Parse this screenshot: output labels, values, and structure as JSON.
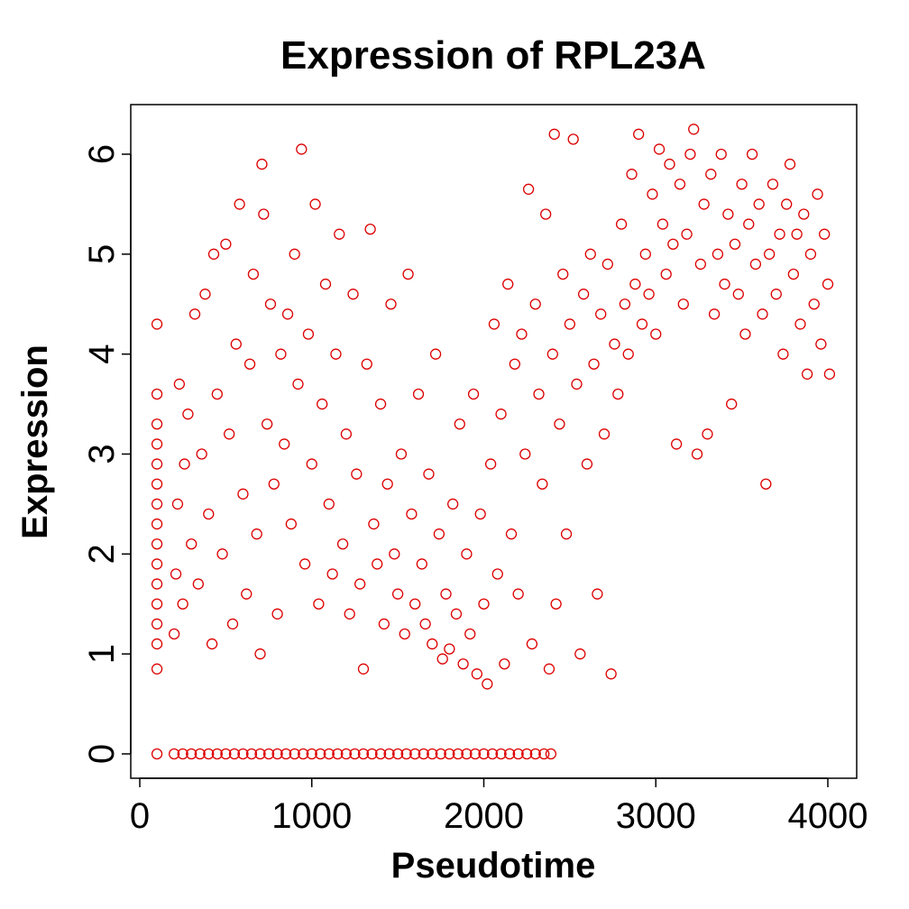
{
  "chart_data": {
    "type": "scatter",
    "title": "Expression of RPL23A",
    "xlabel": "Pseudotime",
    "ylabel": "Expression",
    "xlim": [
      0,
      4000
    ],
    "ylim": [
      0,
      6
    ],
    "x_ticks": [
      0,
      1000,
      2000,
      3000,
      4000
    ],
    "x_tick_labels": [
      "0",
      "1000",
      "2000",
      "3000",
      "4000"
    ],
    "y_ticks": [
      0,
      1,
      2,
      3,
      4,
      5,
      6
    ],
    "y_tick_labels": [
      "0",
      "1",
      "2",
      "3",
      "4",
      "5",
      "6"
    ],
    "grid": false,
    "marker": "open-circle",
    "point_color": "#dd0000",
    "series": [
      {
        "points": [
          [
            100,
            0
          ],
          [
            200,
            0
          ],
          [
            250,
            0
          ],
          [
            300,
            0
          ],
          [
            350,
            0
          ],
          [
            400,
            0
          ],
          [
            450,
            0
          ],
          [
            500,
            0
          ],
          [
            550,
            0
          ],
          [
            600,
            0
          ],
          [
            650,
            0
          ],
          [
            700,
            0
          ],
          [
            750,
            0
          ],
          [
            800,
            0
          ],
          [
            850,
            0
          ],
          [
            900,
            0
          ],
          [
            950,
            0
          ],
          [
            1000,
            0
          ],
          [
            1050,
            0
          ],
          [
            1100,
            0
          ],
          [
            1150,
            0
          ],
          [
            1200,
            0
          ],
          [
            1250,
            0
          ],
          [
            1300,
            0
          ],
          [
            1350,
            0
          ],
          [
            1400,
            0
          ],
          [
            1450,
            0
          ],
          [
            1500,
            0
          ],
          [
            1550,
            0
          ],
          [
            1600,
            0
          ],
          [
            1650,
            0
          ],
          [
            1700,
            0
          ],
          [
            1750,
            0
          ],
          [
            1800,
            0
          ],
          [
            1850,
            0
          ],
          [
            1900,
            0
          ],
          [
            1950,
            0
          ],
          [
            2000,
            0
          ],
          [
            2050,
            0
          ],
          [
            2100,
            0
          ],
          [
            2150,
            0
          ],
          [
            2200,
            0
          ],
          [
            2250,
            0
          ],
          [
            2300,
            0
          ],
          [
            2350,
            0
          ],
          [
            2390,
            0
          ],
          [
            100,
            0.85
          ],
          [
            100,
            1.1
          ],
          [
            100,
            1.3
          ],
          [
            100,
            1.5
          ],
          [
            100,
            1.7
          ],
          [
            100,
            1.9
          ],
          [
            100,
            2.1
          ],
          [
            100,
            2.3
          ],
          [
            100,
            2.5
          ],
          [
            100,
            2.7
          ],
          [
            100,
            2.9
          ],
          [
            100,
            3.1
          ],
          [
            100,
            3.3
          ],
          [
            100,
            3.6
          ],
          [
            100,
            4.3
          ],
          [
            200,
            1.2
          ],
          [
            210,
            1.8
          ],
          [
            220,
            2.5
          ],
          [
            230,
            3.7
          ],
          [
            250,
            1.5
          ],
          [
            260,
            2.9
          ],
          [
            280,
            3.4
          ],
          [
            300,
            2.1
          ],
          [
            320,
            4.4
          ],
          [
            340,
            1.7
          ],
          [
            360,
            3.0
          ],
          [
            380,
            4.6
          ],
          [
            400,
            2.4
          ],
          [
            420,
            1.1
          ],
          [
            430,
            5.0
          ],
          [
            450,
            3.6
          ],
          [
            480,
            2.0
          ],
          [
            500,
            5.1
          ],
          [
            520,
            3.2
          ],
          [
            540,
            1.3
          ],
          [
            560,
            4.1
          ],
          [
            580,
            5.5
          ],
          [
            600,
            2.6
          ],
          [
            620,
            1.6
          ],
          [
            640,
            3.9
          ],
          [
            660,
            4.8
          ],
          [
            680,
            2.2
          ],
          [
            700,
            1.0
          ],
          [
            710,
            5.9
          ],
          [
            720,
            5.4
          ],
          [
            740,
            3.3
          ],
          [
            760,
            4.5
          ],
          [
            780,
            2.7
          ],
          [
            800,
            1.4
          ],
          [
            820,
            4.0
          ],
          [
            840,
            3.1
          ],
          [
            860,
            4.4
          ],
          [
            880,
            2.3
          ],
          [
            900,
            5.0
          ],
          [
            920,
            3.7
          ],
          [
            940,
            6.05
          ],
          [
            960,
            1.9
          ],
          [
            980,
            4.2
          ],
          [
            1000,
            2.9
          ],
          [
            1020,
            5.5
          ],
          [
            1040,
            1.5
          ],
          [
            1060,
            3.5
          ],
          [
            1080,
            4.7
          ],
          [
            1100,
            2.5
          ],
          [
            1120,
            1.8
          ],
          [
            1140,
            4.0
          ],
          [
            1160,
            5.2
          ],
          [
            1180,
            2.1
          ],
          [
            1200,
            3.2
          ],
          [
            1220,
            1.4
          ],
          [
            1240,
            4.6
          ],
          [
            1260,
            2.8
          ],
          [
            1280,
            1.7
          ],
          [
            1300,
            0.85
          ],
          [
            1320,
            3.9
          ],
          [
            1340,
            5.25
          ],
          [
            1360,
            2.3
          ],
          [
            1380,
            1.9
          ],
          [
            1400,
            3.5
          ],
          [
            1420,
            1.3
          ],
          [
            1440,
            2.7
          ],
          [
            1460,
            4.5
          ],
          [
            1480,
            2.0
          ],
          [
            1500,
            1.6
          ],
          [
            1520,
            3.0
          ],
          [
            1540,
            1.2
          ],
          [
            1560,
            4.8
          ],
          [
            1580,
            2.4
          ],
          [
            1600,
            1.5
          ],
          [
            1620,
            3.6
          ],
          [
            1640,
            1.9
          ],
          [
            1660,
            1.3
          ],
          [
            1680,
            2.8
          ],
          [
            1700,
            1.1
          ],
          [
            1720,
            4.0
          ],
          [
            1740,
            2.2
          ],
          [
            1760,
            0.95
          ],
          [
            1780,
            1.6
          ],
          [
            1800,
            1.05
          ],
          [
            1820,
            2.5
          ],
          [
            1840,
            1.4
          ],
          [
            1860,
            3.3
          ],
          [
            1880,
            0.9
          ],
          [
            1900,
            2.0
          ],
          [
            1920,
            1.2
          ],
          [
            1940,
            3.6
          ],
          [
            1960,
            0.8
          ],
          [
            1980,
            2.4
          ],
          [
            2000,
            1.5
          ],
          [
            2020,
            0.7
          ],
          [
            2040,
            2.9
          ],
          [
            2060,
            4.3
          ],
          [
            2080,
            1.8
          ],
          [
            2100,
            3.4
          ],
          [
            2120,
            0.9
          ],
          [
            2140,
            4.7
          ],
          [
            2160,
            2.2
          ],
          [
            2180,
            3.9
          ],
          [
            2200,
            1.6
          ],
          [
            2220,
            4.2
          ],
          [
            2240,
            3.0
          ],
          [
            2260,
            5.65
          ],
          [
            2280,
            1.1
          ],
          [
            2300,
            4.5
          ],
          [
            2320,
            3.6
          ],
          [
            2340,
            2.7
          ],
          [
            2360,
            5.4
          ],
          [
            2380,
            0.85
          ],
          [
            2400,
            4.0
          ],
          [
            2410,
            6.2
          ],
          [
            2420,
            1.5
          ],
          [
            2440,
            3.3
          ],
          [
            2460,
            4.8
          ],
          [
            2480,
            2.2
          ],
          [
            2500,
            4.3
          ],
          [
            2520,
            6.15
          ],
          [
            2540,
            3.7
          ],
          [
            2560,
            1.0
          ],
          [
            2580,
            4.6
          ],
          [
            2600,
            2.9
          ],
          [
            2620,
            5.0
          ],
          [
            2640,
            3.9
          ],
          [
            2660,
            1.6
          ],
          [
            2680,
            4.4
          ],
          [
            2700,
            3.2
          ],
          [
            2720,
            4.9
          ],
          [
            2740,
            0.8
          ],
          [
            2760,
            4.1
          ],
          [
            2780,
            3.6
          ],
          [
            2800,
            5.3
          ],
          [
            2820,
            4.5
          ],
          [
            2840,
            4.0
          ],
          [
            2860,
            5.8
          ],
          [
            2880,
            4.7
          ],
          [
            2900,
            6.2
          ],
          [
            2920,
            4.3
          ],
          [
            2940,
            5.0
          ],
          [
            2960,
            4.6
          ],
          [
            2980,
            5.6
          ],
          [
            3000,
            4.2
          ],
          [
            3020,
            6.05
          ],
          [
            3040,
            5.3
          ],
          [
            3060,
            4.8
          ],
          [
            3080,
            5.9
          ],
          [
            3100,
            5.1
          ],
          [
            3120,
            3.1
          ],
          [
            3140,
            5.7
          ],
          [
            3160,
            4.5
          ],
          [
            3180,
            5.2
          ],
          [
            3200,
            6.0
          ],
          [
            3220,
            6.25
          ],
          [
            3240,
            3.0
          ],
          [
            3260,
            4.9
          ],
          [
            3280,
            5.5
          ],
          [
            3300,
            3.2
          ],
          [
            3320,
            5.8
          ],
          [
            3340,
            4.4
          ],
          [
            3360,
            5.0
          ],
          [
            3380,
            6.0
          ],
          [
            3400,
            4.7
          ],
          [
            3420,
            5.4
          ],
          [
            3440,
            3.5
          ],
          [
            3460,
            5.1
          ],
          [
            3480,
            4.6
          ],
          [
            3500,
            5.7
          ],
          [
            3520,
            4.2
          ],
          [
            3540,
            5.3
          ],
          [
            3560,
            6.0
          ],
          [
            3580,
            4.9
          ],
          [
            3600,
            5.5
          ],
          [
            3620,
            4.4
          ],
          [
            3640,
            2.7
          ],
          [
            3660,
            5.0
          ],
          [
            3680,
            5.7
          ],
          [
            3700,
            4.6
          ],
          [
            3720,
            5.2
          ],
          [
            3740,
            4.0
          ],
          [
            3760,
            5.5
          ],
          [
            3780,
            5.9
          ],
          [
            3800,
            4.8
          ],
          [
            3820,
            5.2
          ],
          [
            3840,
            4.3
          ],
          [
            3860,
            5.4
          ],
          [
            3880,
            3.8
          ],
          [
            3900,
            5.0
          ],
          [
            3920,
            4.5
          ],
          [
            3940,
            5.6
          ],
          [
            3960,
            4.1
          ],
          [
            3980,
            5.2
          ],
          [
            4000,
            4.7
          ],
          [
            4010,
            3.8
          ]
        ]
      }
    ]
  }
}
